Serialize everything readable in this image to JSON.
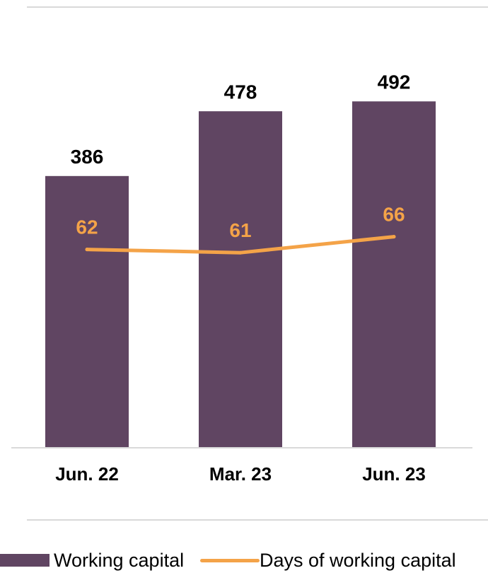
{
  "chart_data": {
    "type": "bar",
    "title": "",
    "xlabel": "",
    "ylabel": "",
    "categories": [
      "Jun. 22",
      "Mar. 23",
      "Jun. 23"
    ],
    "series": [
      {
        "name": "Working capital",
        "type": "bar",
        "values": [
          386,
          478,
          492
        ],
        "labels": [
          "386",
          "478",
          "492"
        ],
        "color": "#604562"
      },
      {
        "name": "Days of working capital",
        "type": "line",
        "values": [
          62,
          61,
          66
        ],
        "labels": [
          "62",
          "61",
          "66"
        ],
        "color": "#F4A348"
      }
    ],
    "ylim_bar": [
      0,
      636
    ],
    "ylim_line": [
      0,
      140
    ],
    "grid": false,
    "legend_position": "bottom"
  }
}
